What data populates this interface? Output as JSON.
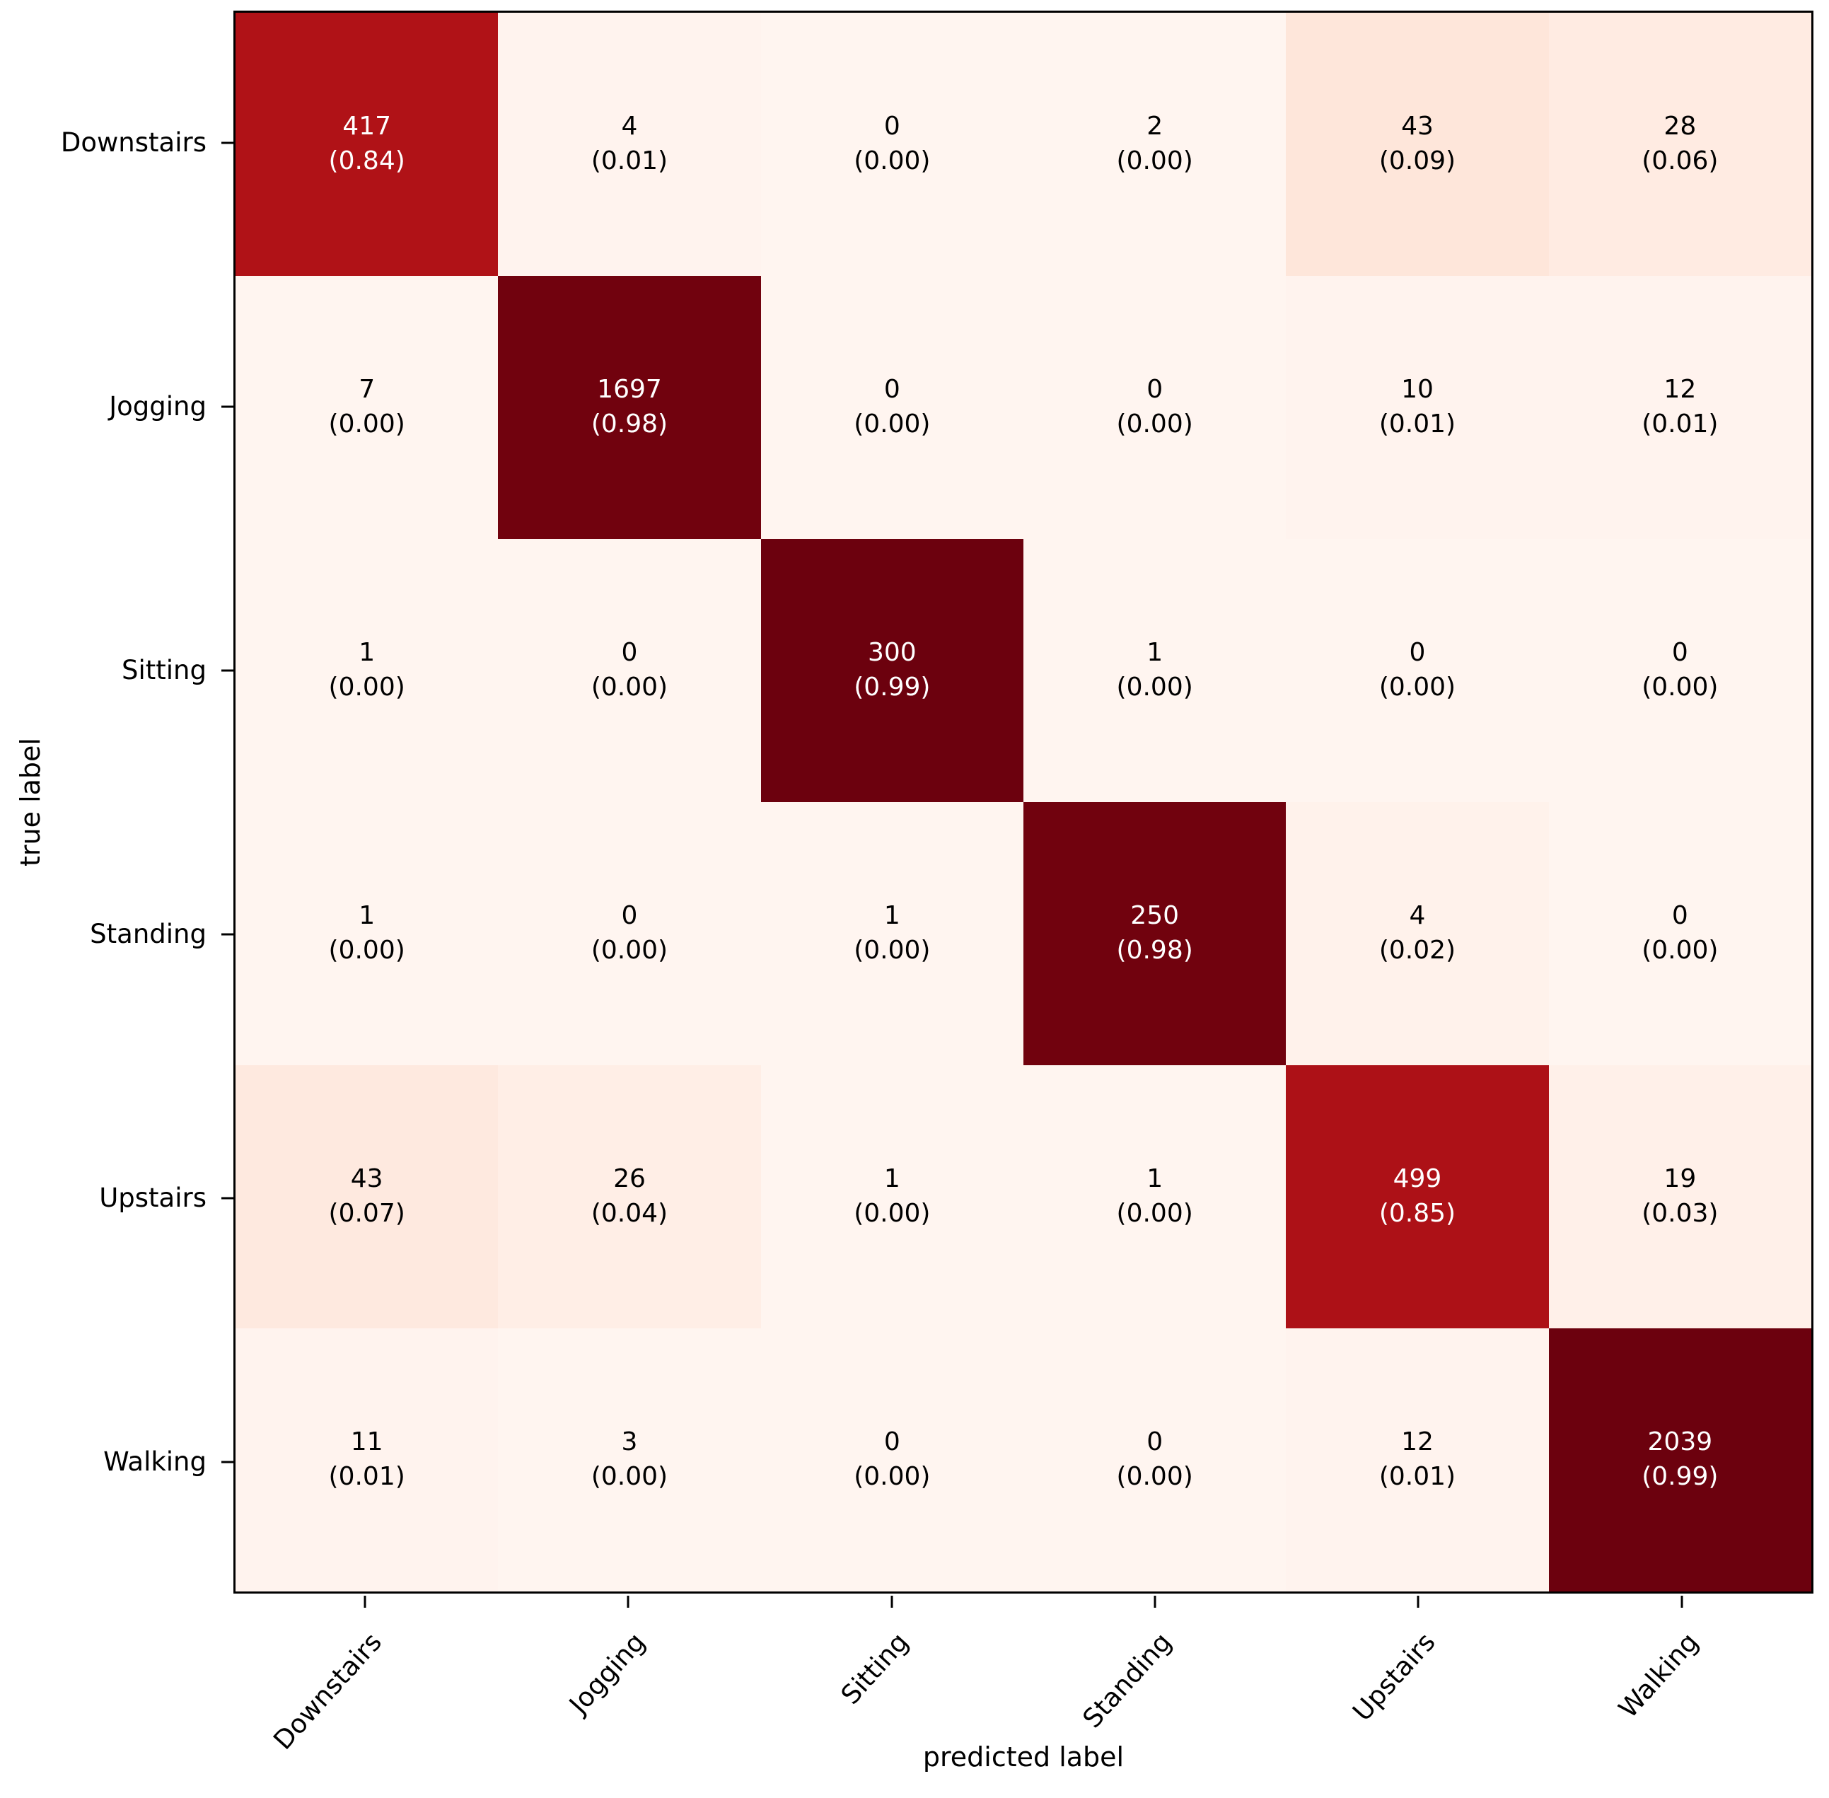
{
  "chart_data": {
    "type": "heatmap",
    "title": "",
    "xlabel": "predicted label",
    "ylabel": "true label",
    "x_categories": [
      "Downstairs",
      "Jogging",
      "Sitting",
      "Standing",
      "Upstairs",
      "Walking"
    ],
    "y_categories": [
      "Downstairs",
      "Jogging",
      "Sitting",
      "Standing",
      "Upstairs",
      "Walking"
    ],
    "counts": [
      [
        417,
        4,
        0,
        2,
        43,
        28
      ],
      [
        7,
        1697,
        0,
        0,
        10,
        12
      ],
      [
        1,
        0,
        300,
        1,
        0,
        0
      ],
      [
        1,
        0,
        1,
        250,
        4,
        0
      ],
      [
        43,
        26,
        1,
        1,
        499,
        19
      ],
      [
        11,
        3,
        0,
        0,
        12,
        2039
      ]
    ],
    "proportions": [
      [
        "0.84",
        "0.01",
        "0.00",
        "0.00",
        "0.09",
        "0.06"
      ],
      [
        "0.00",
        "0.98",
        "0.00",
        "0.00",
        "0.01",
        "0.01"
      ],
      [
        "0.00",
        "0.00",
        "0.99",
        "0.00",
        "0.00",
        "0.00"
      ],
      [
        "0.00",
        "0.00",
        "0.00",
        "0.98",
        "0.02",
        "0.00"
      ],
      [
        "0.07",
        "0.04",
        "0.00",
        "0.00",
        "0.85",
        "0.03"
      ],
      [
        "0.01",
        "0.00",
        "0.00",
        "0.00",
        "0.01",
        "0.99"
      ]
    ],
    "cell_label_format": "count over (proportion)",
    "colormap": "Reds",
    "colormap_stops": [
      "#fff5f0",
      "#fee0d2",
      "#fcbba1",
      "#fc9272",
      "#fb6a4a",
      "#ef3b2c",
      "#cb181d",
      "#a50f15",
      "#67000d"
    ],
    "light_text_threshold": 0.5,
    "text_light": "#ffffff",
    "text_dark": "#000000",
    "frame_color": "#000000",
    "background_color": "#ffffff",
    "grid": "off",
    "legend": "none"
  }
}
